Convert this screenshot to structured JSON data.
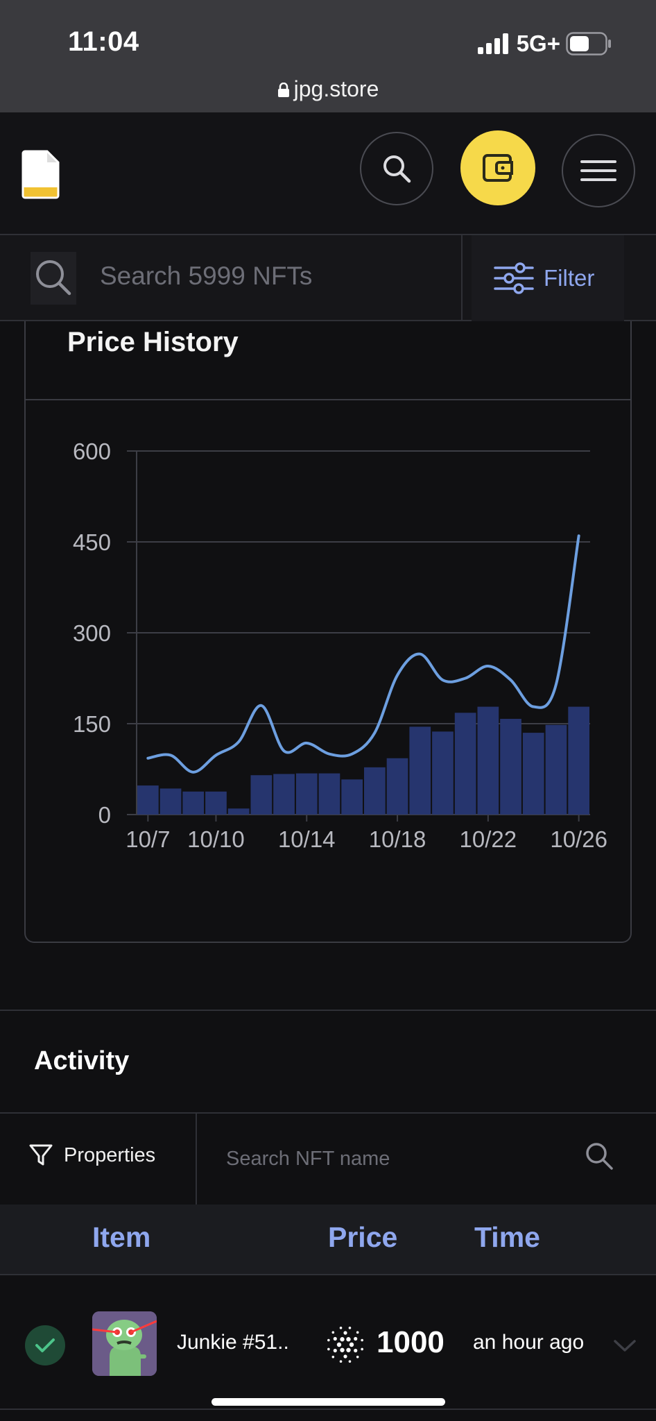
{
  "status_bar": {
    "time": "11:04",
    "network": "5G+",
    "url": "jpg.store"
  },
  "header": {
    "logo": "jpg-store-logo",
    "search_icon": "search-icon",
    "wallet_icon": "wallet-icon",
    "menu_icon": "hamburger-menu-icon",
    "wallet_color": "#f6d94a"
  },
  "search": {
    "placeholder": "Search 5999 NFTs",
    "filter_label": "Filter"
  },
  "price_history": {
    "title": "Price History",
    "chart_data": {
      "type": "bar",
      "x_ticks": [
        "10/7",
        "10/10",
        "10/14",
        "10/18",
        "10/22",
        "10/26"
      ],
      "y_ticks": [
        0,
        150,
        300,
        450,
        600
      ],
      "ylim": [
        0,
        600
      ],
      "categories": [
        "10/7",
        "10/8",
        "10/9",
        "10/10",
        "10/11",
        "10/12",
        "10/13",
        "10/14",
        "10/15",
        "10/16",
        "10/17",
        "10/18",
        "10/19",
        "10/20",
        "10/21",
        "10/22",
        "10/23",
        "10/24",
        "10/25",
        "10/26"
      ],
      "series": [
        {
          "values": [
            48,
            43,
            38,
            38,
            10,
            65,
            67,
            68,
            68,
            58,
            78,
            93,
            145,
            137,
            168,
            178,
            158,
            135,
            148,
            178
          ]
        },
        {
          "values": [
            93,
            98,
            70,
            98,
            120,
            180,
            105,
            118,
            100,
            100,
            135,
            230,
            265,
            222,
            225,
            245,
            222,
            178,
            215,
            460
          ]
        }
      ],
      "bar_color": "#26356e",
      "line_color": "#6d9fe0",
      "grid": true
    }
  },
  "activity": {
    "title": "Activity",
    "properties_label": "Properties",
    "name_search_placeholder": "Search NFT name",
    "columns": {
      "item": "Item",
      "price": "Price",
      "time": "Time"
    },
    "rows": [
      {
        "name": "Junkie #51..",
        "price": "1000",
        "time": "an hour ago",
        "status": "check-icon"
      }
    ]
  }
}
